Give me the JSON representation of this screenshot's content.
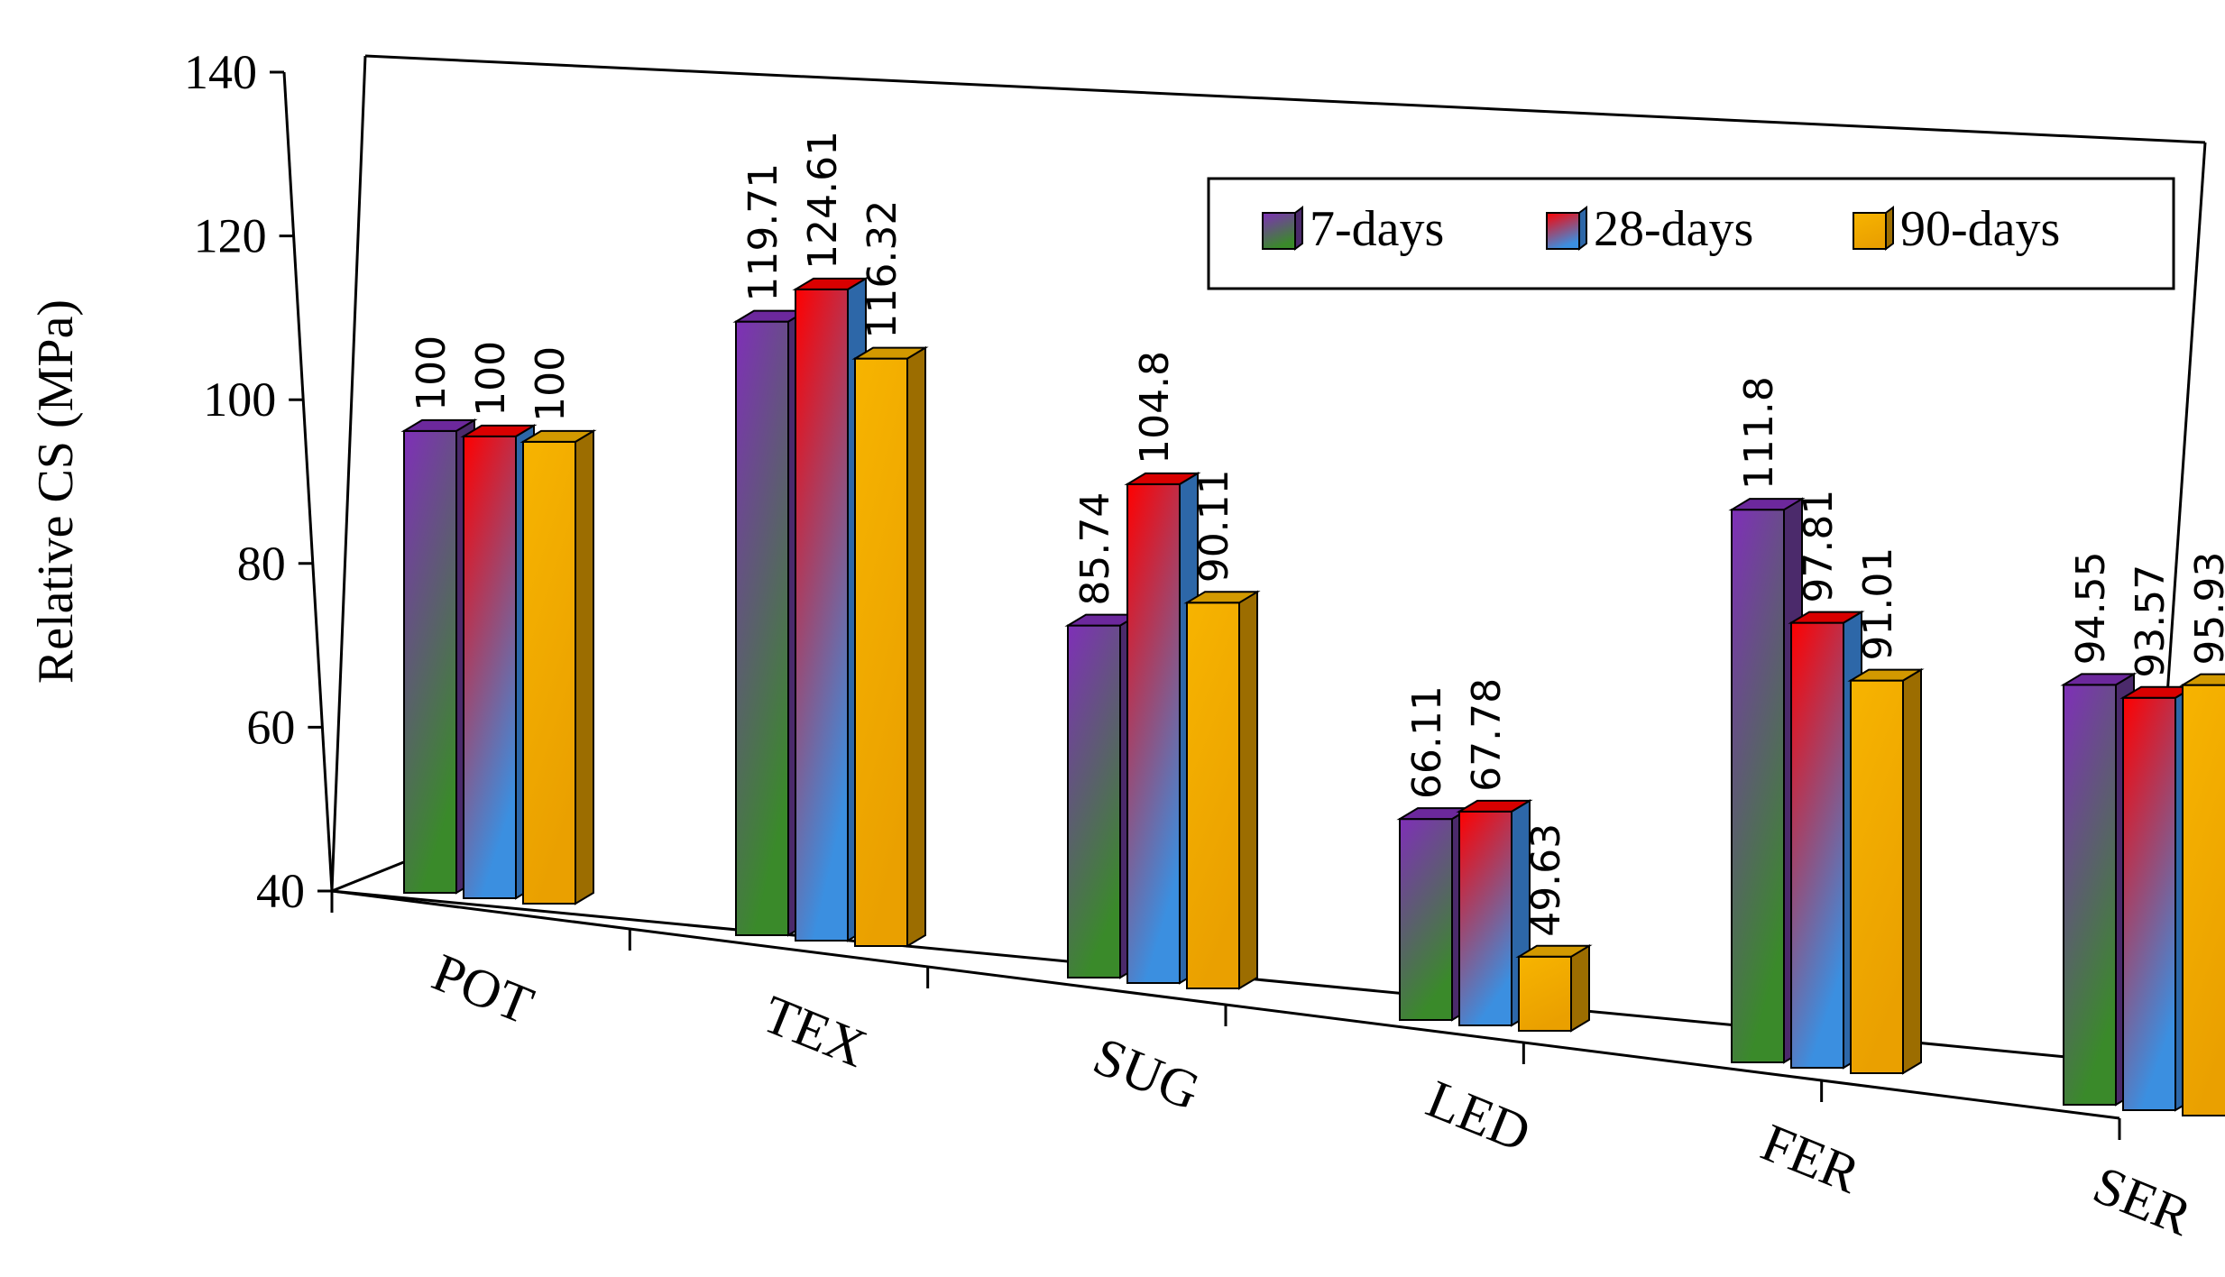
{
  "chart_data": {
    "type": "bar",
    "title": "",
    "xlabel": "",
    "ylabel": "Relative CS (MPa)",
    "ylim": [
      40,
      140
    ],
    "yticks": [
      "40",
      "60",
      "80",
      "100",
      "120",
      "140"
    ],
    "categories": [
      "POT",
      "TEX",
      "SUG",
      "LED",
      "FER",
      "SER"
    ],
    "legend_position": "top-right",
    "series": [
      {
        "name": "7-days",
        "values": [
          100,
          119.71,
          85.74,
          66.11,
          111.8,
          94.55
        ],
        "labels": [
          "100",
          "119.71",
          "85.74",
          "66.11",
          "111.8",
          "94.55"
        ],
        "colors": {
          "top": "#7f2fb8",
          "bottom": "#3a8a2a",
          "side": "#4b2a6b"
        }
      },
      {
        "name": "28-days",
        "values": [
          100,
          124.61,
          104.8,
          67.78,
          97.81,
          93.57
        ],
        "labels": [
          "100",
          "124.61",
          "104.8",
          "67.78",
          "97.81",
          "93.57"
        ],
        "colors": {
          "top": "#ff0000",
          "bottom": "#3b8fe0",
          "side": "#2d67a8"
        }
      },
      {
        "name": "90-days",
        "values": [
          100,
          116.32,
          90.11,
          49.63,
          91.01,
          95.93
        ],
        "labels": [
          "100",
          "116.32",
          "90.11",
          "49.63",
          "91.01",
          "95.93"
        ],
        "colors": {
          "top": "#f7b400",
          "bottom": "#eaa000",
          "side": "#9c6d00"
        }
      }
    ]
  }
}
